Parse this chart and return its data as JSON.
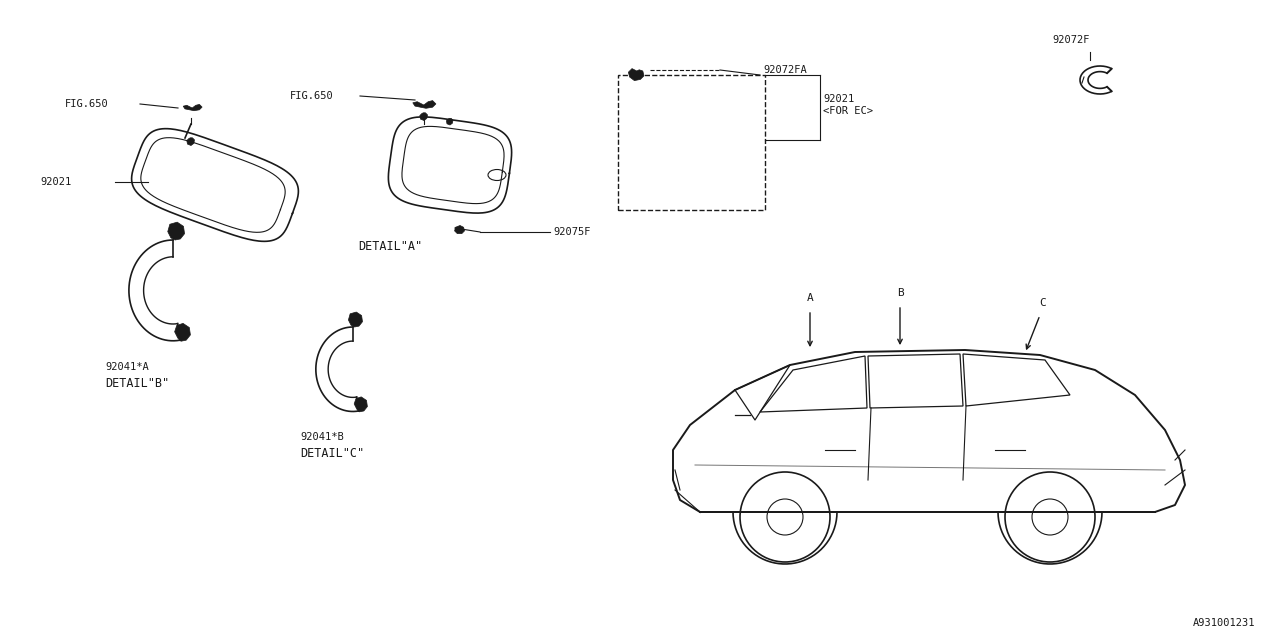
{
  "bg_color": "#ffffff",
  "line_color": "#1a1a1a",
  "fig_width": 12.8,
  "fig_height": 6.4,
  "parts": {
    "92021": "92021",
    "92021_ec": "92021\n<FOR EC>",
    "92072FA": "92072FA",
    "92072F": "92072F",
    "92075F": "92075F",
    "92041A": "92041*A",
    "92041B": "92041*B",
    "FIG650": "FIG.650"
  },
  "labels": {
    "detail_a": "DETAIL\"A\"",
    "detail_b": "DETAIL\"B\"",
    "detail_c": "DETAIL\"C\"",
    "ref_id": "A931001231"
  }
}
